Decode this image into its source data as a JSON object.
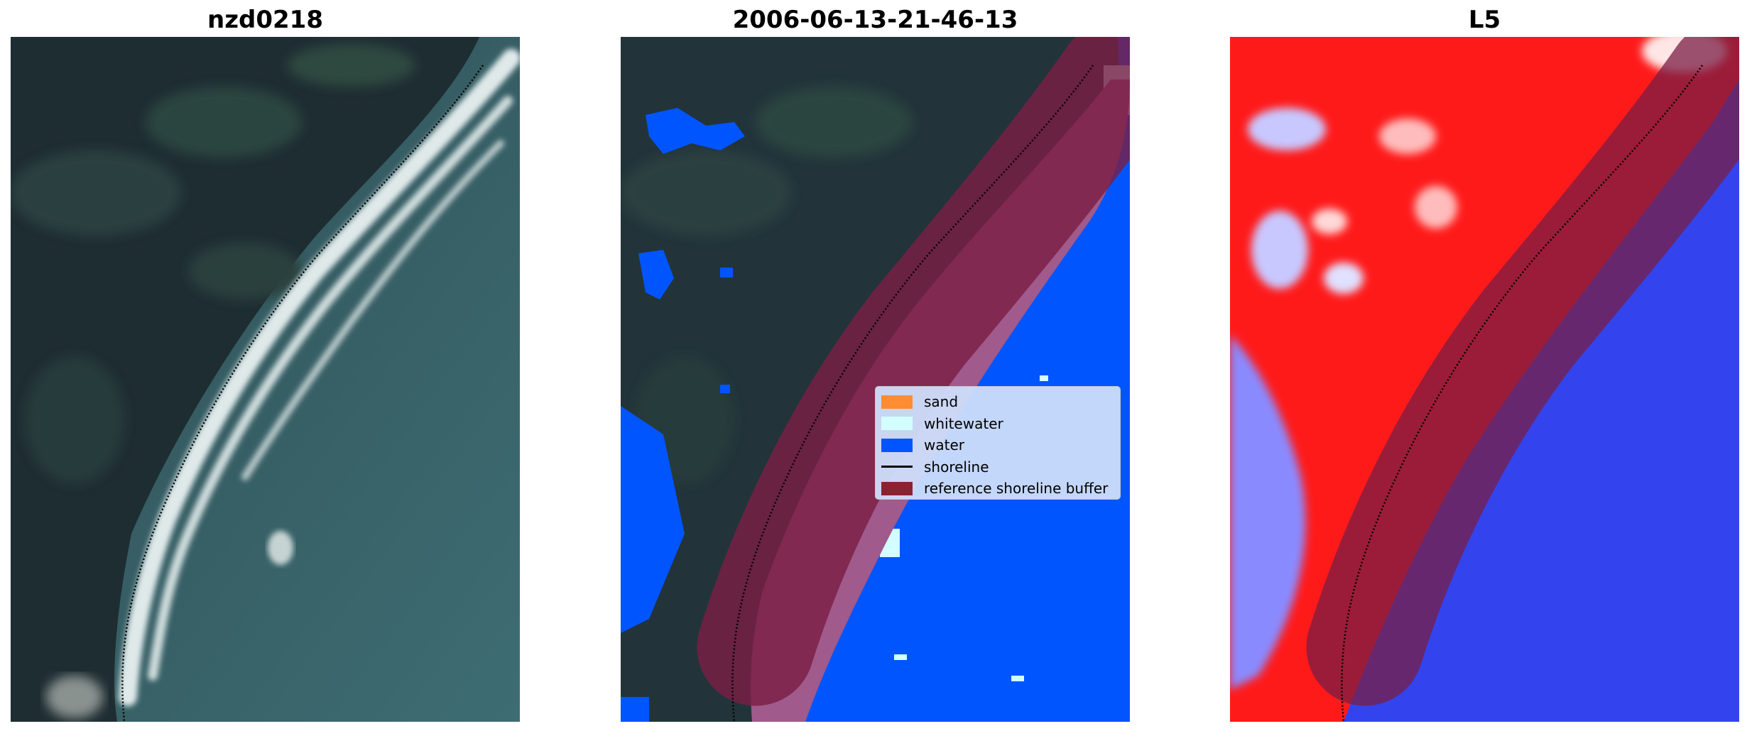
{
  "panels": [
    {
      "title": "nzd0218",
      "kind": "rgb"
    },
    {
      "title": "2006-06-13-21-46-13",
      "kind": "classified"
    },
    {
      "title": "L5",
      "kind": "index"
    }
  ],
  "legend": {
    "items": [
      {
        "label": "sand",
        "color": "#ff8c33"
      },
      {
        "label": "whitewater",
        "color": "#d2ffff"
      },
      {
        "label": "water",
        "color": "#0055ff"
      },
      {
        "label": "shoreline",
        "color": "#000000",
        "type": "line"
      },
      {
        "label": "reference shoreline buffer",
        "color": "#8b2232"
      }
    ]
  },
  "colors": {
    "buffer": "#7a1e44",
    "whitewater_class": "#a05a8c",
    "water": "#0055ff",
    "land_index": "#ff1a1a",
    "water_index": "#3344ee"
  }
}
